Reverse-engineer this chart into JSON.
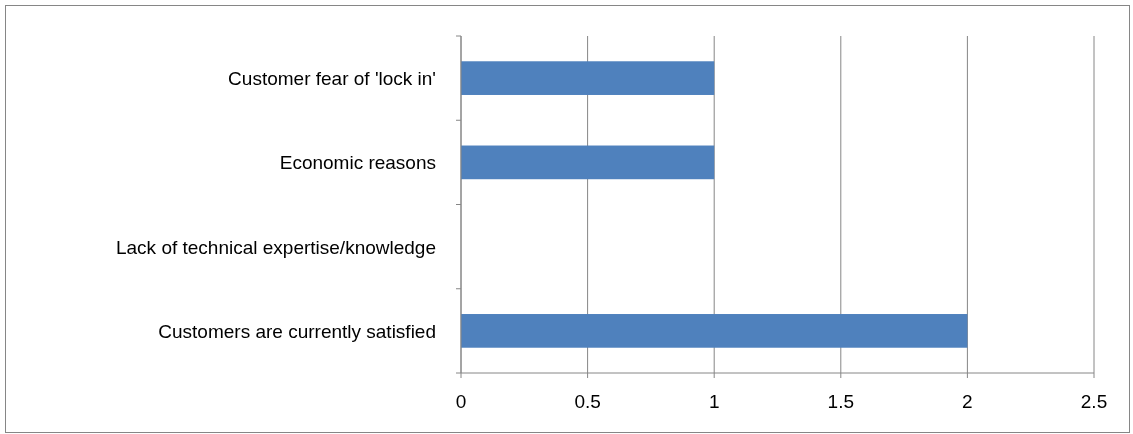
{
  "chart_data": {
    "type": "bar",
    "orientation": "horizontal",
    "categories": [
      "Customer fear of 'lock in'",
      "Economic reasons",
      "Lack of technical expertise/knowledge",
      "Customers are currently satisfied"
    ],
    "values": [
      1,
      1,
      0,
      2
    ],
    "color": "#4f81bd",
    "xlim": [
      0,
      2.5
    ],
    "xticks": [
      0,
      0.5,
      1,
      1.5,
      2,
      2.5
    ],
    "grid": "x"
  }
}
